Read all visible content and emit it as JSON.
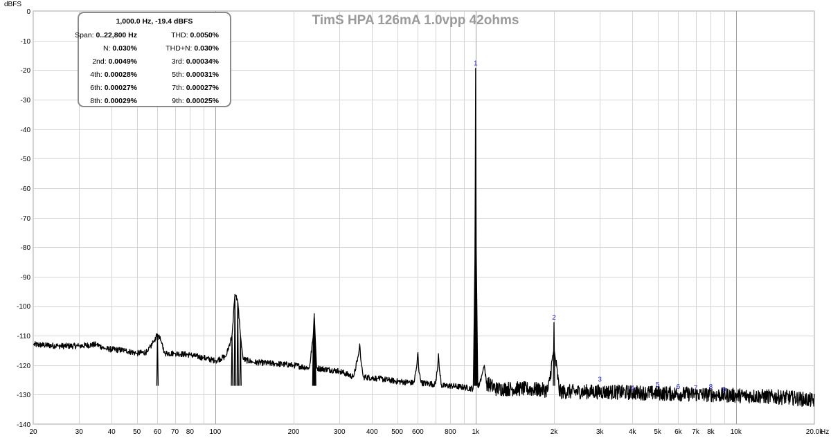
{
  "chart_data": {
    "type": "line",
    "title": "TimS HPA 126mA 1.0vpp 42ohms",
    "ylabel": "dBFS",
    "xunit": "Hz",
    "xscale": "log",
    "xlim": [
      20,
      20000
    ],
    "ylim": [
      -140,
      0
    ],
    "yticks": [
      0,
      -10,
      -20,
      -30,
      -40,
      -50,
      -60,
      -70,
      -80,
      -90,
      -100,
      -110,
      -120,
      -130,
      -140
    ],
    "xticks": [
      {
        "v": 20,
        "label": "20"
      },
      {
        "v": 30,
        "label": "30"
      },
      {
        "v": 40,
        "label": "40"
      },
      {
        "v": 50,
        "label": "50"
      },
      {
        "v": 60,
        "label": "60"
      },
      {
        "v": 70,
        "label": "70"
      },
      {
        "v": 80,
        "label": "80"
      },
      {
        "v": 100,
        "label": "100"
      },
      {
        "v": 200,
        "label": "200"
      },
      {
        "v": 300,
        "label": "300"
      },
      {
        "v": 400,
        "label": "400"
      },
      {
        "v": 500,
        "label": "500"
      },
      {
        "v": 600,
        "label": "600"
      },
      {
        "v": 800,
        "label": "800"
      },
      {
        "v": 1000,
        "label": "1k"
      },
      {
        "v": 2000,
        "label": "2k"
      },
      {
        "v": 3000,
        "label": "3k"
      },
      {
        "v": 4000,
        "label": "4k"
      },
      {
        "v": 5000,
        "label": "5k"
      },
      {
        "v": 6000,
        "label": "6k"
      },
      {
        "v": 7000,
        "label": "7k"
      },
      {
        "v": 8000,
        "label": "8k"
      },
      {
        "v": 10000,
        "label": "10k"
      },
      {
        "v": 20000,
        "label": "20.0k"
      }
    ],
    "grid": true,
    "series": [
      {
        "color": "#000000",
        "points": [
          [
            20,
            -113
          ],
          [
            25,
            -113.5
          ],
          [
            30,
            -113.5
          ],
          [
            35,
            -113
          ],
          [
            38,
            -114.5
          ],
          [
            45,
            -115
          ],
          [
            50,
            -116
          ],
          [
            55,
            -115.5
          ],
          [
            58,
            -112
          ],
          [
            60,
            -109.5
          ],
          [
            62,
            -112
          ],
          [
            64,
            -116
          ],
          [
            70,
            -116
          ],
          [
            80,
            -116.5
          ],
          [
            90,
            -117.5
          ],
          [
            100,
            -118.5
          ],
          [
            110,
            -117
          ],
          [
            116,
            -110
          ],
          [
            119,
            -96
          ],
          [
            122,
            -98
          ],
          [
            125,
            -110
          ],
          [
            128,
            -118
          ],
          [
            140,
            -119
          ],
          [
            170,
            -119.5
          ],
          [
            200,
            -120
          ],
          [
            230,
            -121
          ],
          [
            238,
            -110
          ],
          [
            240,
            -102.5
          ],
          [
            242,
            -110
          ],
          [
            245,
            -121
          ],
          [
            300,
            -122
          ],
          [
            340,
            -124
          ],
          [
            356,
            -116
          ],
          [
            359,
            -112.5
          ],
          [
            362,
            -118
          ],
          [
            370,
            -124
          ],
          [
            420,
            -124.5
          ],
          [
            500,
            -125.5
          ],
          [
            580,
            -126
          ],
          [
            595,
            -120
          ],
          [
            600,
            -115
          ],
          [
            605,
            -122
          ],
          [
            620,
            -126
          ],
          [
            700,
            -126.5
          ],
          [
            715,
            -121
          ],
          [
            720,
            -116
          ],
          [
            725,
            -121
          ],
          [
            740,
            -127
          ],
          [
            800,
            -127
          ],
          [
            900,
            -127.5
          ],
          [
            980,
            -128
          ],
          [
            995,
            -80
          ],
          [
            1000,
            -19.4
          ],
          [
            1005,
            -80
          ],
          [
            1020,
            -128
          ],
          [
            1060,
            -123
          ],
          [
            1080,
            -120
          ],
          [
            1100,
            -126
          ],
          [
            1200,
            -128
          ],
          [
            1500,
            -128
          ],
          [
            1900,
            -128.5
          ],
          [
            1995,
            -115
          ],
          [
            2000,
            -105.5
          ],
          [
            2005,
            -115
          ],
          [
            2100,
            -129
          ],
          [
            3000,
            -129
          ],
          [
            5000,
            -129.5
          ],
          [
            8000,
            -130
          ],
          [
            12000,
            -130.5
          ],
          [
            16000,
            -131
          ],
          [
            20000,
            -132
          ]
        ],
        "noise_floor_from_hz": 1100,
        "noise_amplitude_db": 2.5
      }
    ],
    "harmonic_markers": [
      {
        "label": "1",
        "hz": 1000,
        "db": -19.4
      },
      {
        "label": "2",
        "hz": 2000,
        "db": -105.5
      },
      {
        "label": "3",
        "hz": 3000,
        "db": -126.5
      },
      {
        "label": "4",
        "hz": 4000,
        "db": -129.5
      },
      {
        "label": "5",
        "hz": 5000,
        "db": -128.3
      },
      {
        "label": "6",
        "hz": 6000,
        "db": -129
      },
      {
        "label": "7",
        "hz": 7000,
        "db": -129.5
      },
      {
        "label": "8",
        "hz": 8000,
        "db": -129
      },
      {
        "label": "9",
        "hz": 9000,
        "db": -130
      }
    ]
  },
  "legend": {
    "header": "1,000.0 Hz, -19.4 dBFS",
    "rows": [
      {
        "l_label": "Span:",
        "l_value": "0..22,800 Hz",
        "r_label": "THD:",
        "r_value": "0.0050%"
      },
      {
        "l_label": "N:",
        "l_value": "0.030%",
        "r_label": "THD+N:",
        "r_value": "0.030%"
      },
      {
        "l_label": "2nd:",
        "l_value": "0.0049%",
        "r_label": "3rd:",
        "r_value": "0.00034%"
      },
      {
        "l_label": "4th:",
        "l_value": "0.00028%",
        "r_label": "5th:",
        "r_value": "0.00031%"
      },
      {
        "l_label": "6th:",
        "l_value": "0.00027%",
        "r_label": "7th:",
        "r_value": "0.00027%"
      },
      {
        "l_label": "8th:",
        "l_value": "0.00029%",
        "r_label": "9th:",
        "r_value": "0.00025%"
      }
    ]
  }
}
